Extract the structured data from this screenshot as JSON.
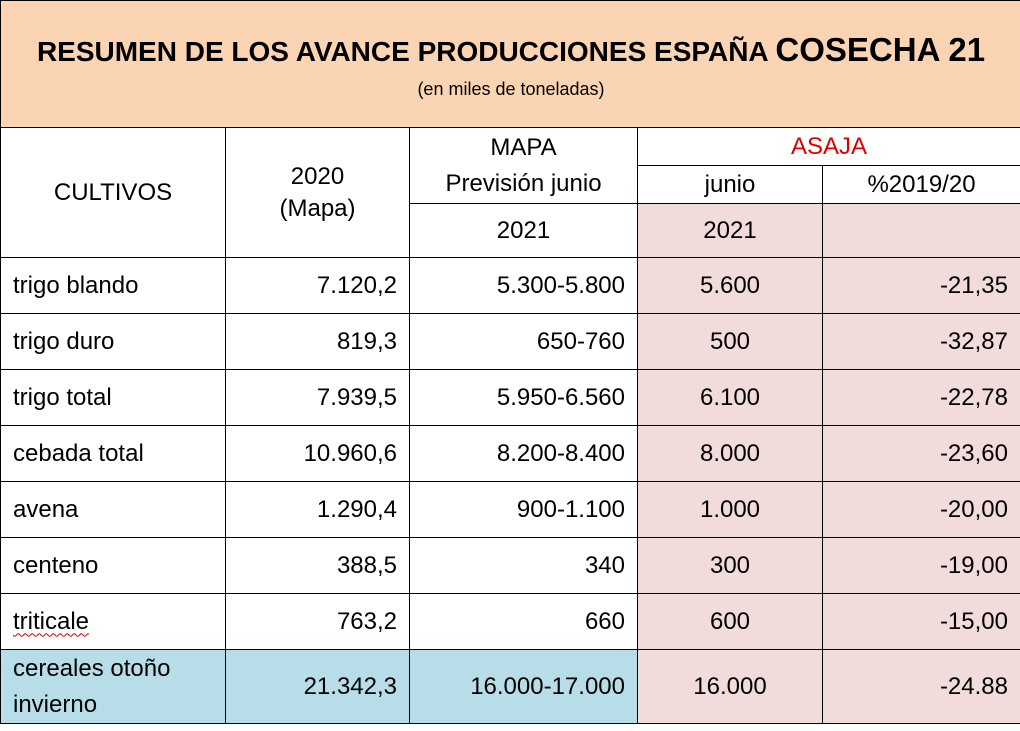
{
  "header": {
    "title_main": "RESUMEN DE LOS AVANCE  PRODUCCIONES ESPAÑA ",
    "title_emph": "COSECHA 21",
    "subtitle": "(en  miles de toneladas)"
  },
  "columns": {
    "cultivos": "CULTIVOS",
    "y2020_line1": "2020",
    "y2020_line2": "(Mapa)",
    "mapa_line1": "MAPA",
    "mapa_line2": "Previsión junio",
    "mapa_year": "2021",
    "asaja": "ASAJA",
    "asaja_junio": "junio",
    "asaja_pct": "%2019/20",
    "asaja_year": "2021"
  },
  "rows": [
    {
      "cultivo": "trigo blando",
      "v2020": "7.120,2",
      "mapa": "5.300-5.800",
      "asaja": "5.600",
      "pct": "-21,35"
    },
    {
      "cultivo": "trigo duro",
      "v2020": "819,3",
      "mapa": "650-760",
      "asaja": "500",
      "pct": "-32,87"
    },
    {
      "cultivo": "trigo total",
      "v2020": "7.939,5",
      "mapa": "5.950-6.560",
      "asaja": "6.100",
      "pct": "-22,78"
    },
    {
      "cultivo": "cebada total",
      "v2020": "10.960,6",
      "mapa": "8.200-8.400",
      "asaja": "8.000",
      "pct": "-23,60"
    },
    {
      "cultivo": "avena",
      "v2020": "1.290,4",
      "mapa": "900-1.100",
      "asaja": "1.000",
      "pct": "-20,00"
    },
    {
      "cultivo": "centeno",
      "v2020": "388,5",
      "mapa": "340",
      "asaja": "300",
      "pct": "-19,00"
    },
    {
      "cultivo": "triticale",
      "v2020": "763,2",
      "mapa": "660",
      "asaja": "600",
      "pct": "-15,00"
    }
  ],
  "total": {
    "cultivo_line1": "cereales otoño",
    "cultivo_line2": "invierno",
    "v2020": "21.342,3",
    "mapa": "16.000-17.000",
    "asaja": "16.000",
    "pct": "-24.88"
  },
  "colors": {
    "header_bg": "#fbd4b4",
    "asaja_bg": "#f2dcdb",
    "total_bg": "#b7dee8",
    "asaja_text": "#e00000"
  }
}
